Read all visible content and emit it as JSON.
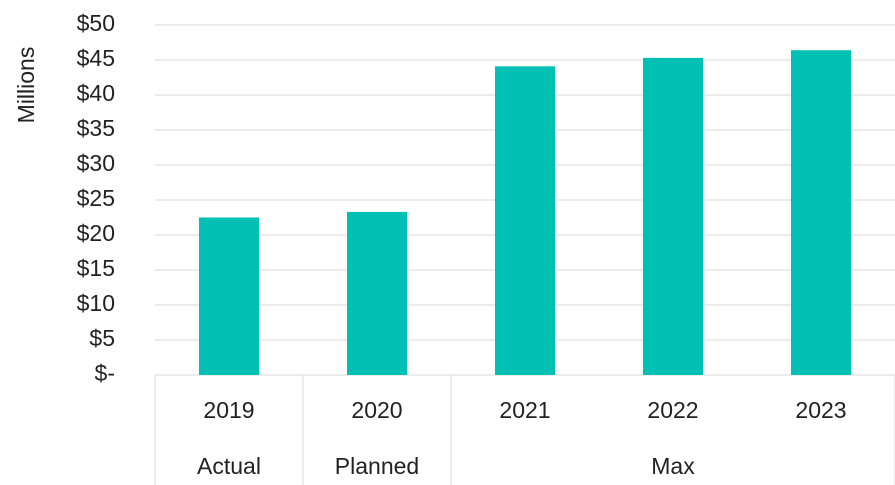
{
  "chart_data": {
    "type": "bar",
    "y_axis_label": "Millions",
    "categories": [
      "2019",
      "2020",
      "2021",
      "2022",
      "2023"
    ],
    "groups": [
      {
        "name": "Actual",
        "size": 1
      },
      {
        "name": "Planned",
        "size": 1
      },
      {
        "name": "Max",
        "size": 3
      }
    ],
    "values": [
      22.5,
      23.3,
      44.1,
      45.3,
      46.4
    ],
    "color": "#00bfb3",
    "ylim": [
      0,
      50
    ],
    "yticks": [
      {
        "value": 0,
        "label": "$-"
      },
      {
        "value": 5,
        "label": "$5"
      },
      {
        "value": 10,
        "label": "$10"
      },
      {
        "value": 15,
        "label": "$15"
      },
      {
        "value": 20,
        "label": "$20"
      },
      {
        "value": 25,
        "label": "$25"
      },
      {
        "value": 30,
        "label": "$30"
      },
      {
        "value": 35,
        "label": "$35"
      },
      {
        "value": 40,
        "label": "$40"
      },
      {
        "value": 45,
        "label": "$45"
      },
      {
        "value": 50,
        "label": "$50"
      }
    ],
    "grid": true
  }
}
